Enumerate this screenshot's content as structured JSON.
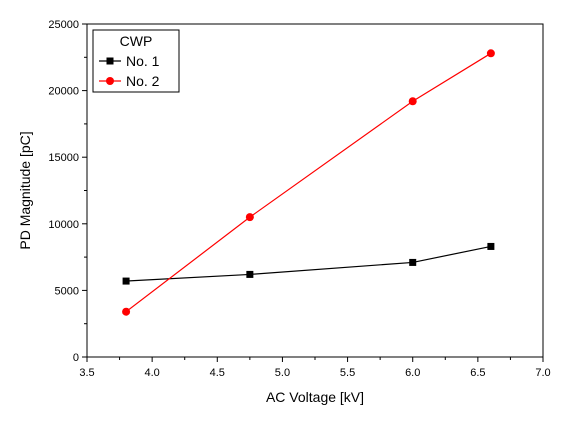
{
  "chart_data": {
    "type": "line",
    "xlabel": "AC Voltage [kV]",
    "ylabel": "PD Magnitude [pC]",
    "xlim": [
      3.5,
      7.0
    ],
    "ylim": [
      0,
      25000
    ],
    "x_ticks": [
      3.5,
      4.0,
      4.5,
      5.0,
      5.5,
      6.0,
      6.5,
      7.0
    ],
    "x_tick_labels": [
      "3.5",
      "4.0",
      "4.5",
      "5.0",
      "5.5",
      "6.0",
      "6.5",
      "7.0"
    ],
    "y_ticks": [
      0,
      5000,
      10000,
      15000,
      20000,
      25000
    ],
    "y_tick_labels": [
      "0",
      "5000",
      "10000",
      "15000",
      "20000",
      "25000"
    ],
    "grid": false,
    "legend": {
      "title": "CWP",
      "placement": "top-left"
    },
    "series": [
      {
        "name": "No. 1",
        "color": "#000000",
        "marker": "square",
        "x": [
          3.8,
          4.75,
          6.0,
          6.6
        ],
        "values": [
          5700,
          6200,
          7100,
          8300
        ]
      },
      {
        "name": "No. 2",
        "color": "#ff0000",
        "marker": "circle",
        "x": [
          3.8,
          4.75,
          6.0,
          6.6
        ],
        "values": [
          3400,
          10500,
          19200,
          22800
        ]
      }
    ]
  }
}
